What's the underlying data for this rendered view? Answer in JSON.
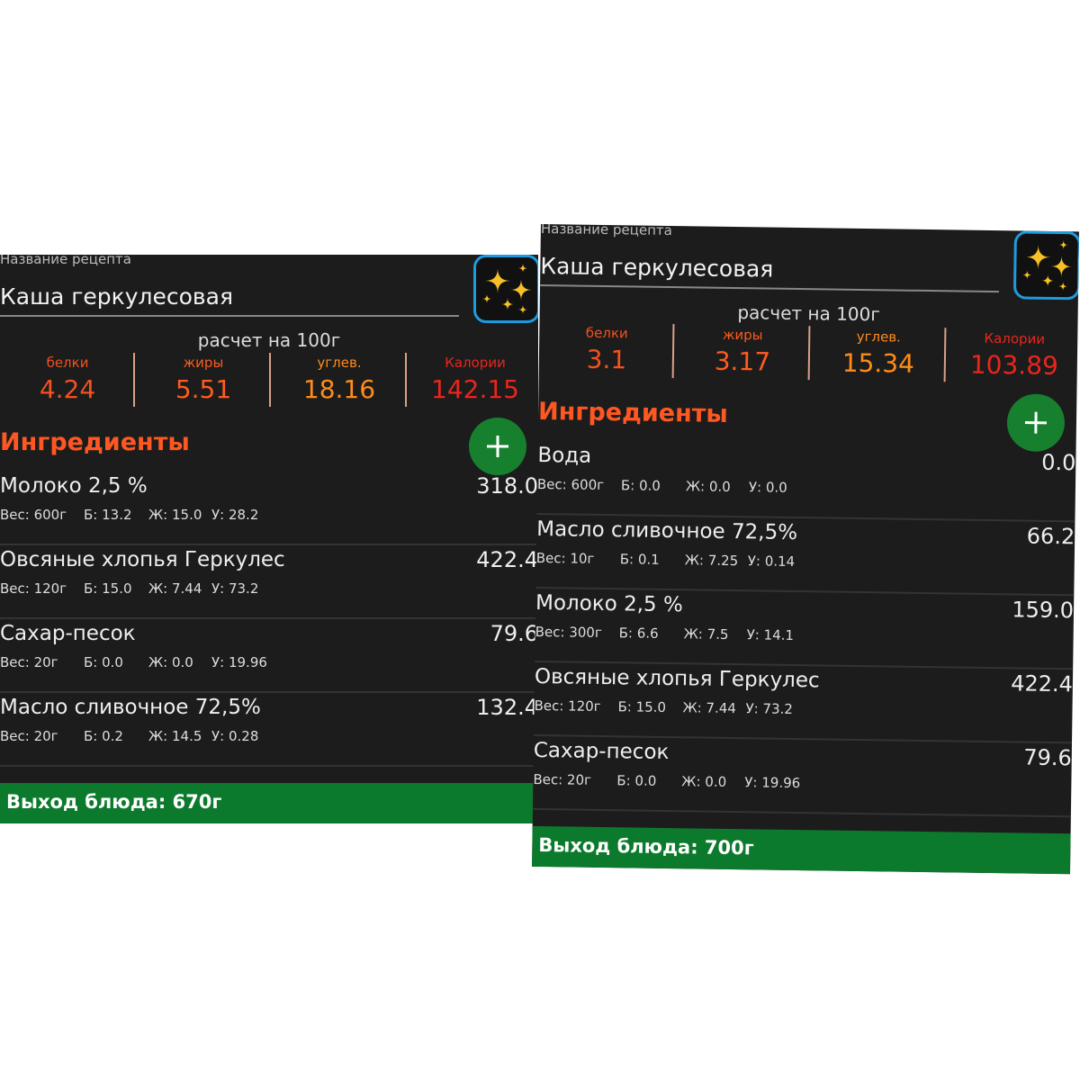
{
  "panels": [
    {
      "field_label": "Название рецепта",
      "recipe_name": "Каша геркулесовая",
      "per_label": "расчет на 100г",
      "nutrients": [
        {
          "label": "белки",
          "value": "4.24"
        },
        {
          "label": "жиры",
          "value": "5.51"
        },
        {
          "label": "углев.",
          "value": "18.16"
        },
        {
          "label": "Калории",
          "value": "142.15"
        }
      ],
      "ingredients_title": "Ингредиенты",
      "ingredients": [
        {
          "name": "Молоко 2,5 %",
          "kcal": "318.0",
          "weight": "Вес: 600г",
          "protein": "Б: 13.2",
          "fat": "Ж: 15.0",
          "carbs": "У: 28.2"
        },
        {
          "name": "Овсяные хлопья Геркулес",
          "kcal": "422.4",
          "weight": "Вес: 120г",
          "protein": "Б: 15.0",
          "fat": "Ж: 7.44",
          "carbs": "У: 73.2"
        },
        {
          "name": "Сахар-песок",
          "kcal": "79.6",
          "weight": "Вес: 20г",
          "protein": "Б: 0.0",
          "fat": "Ж: 0.0",
          "carbs": "У: 19.96"
        },
        {
          "name": "Масло сливочное 72,5%",
          "kcal": "132.4",
          "weight": "Вес: 20г",
          "protein": "Б: 0.2",
          "fat": "Ж: 14.5",
          "carbs": "У: 0.28"
        }
      ],
      "yield": "Выход блюда: 670г"
    },
    {
      "field_label": "Название рецепта",
      "recipe_name": "Каша геркулесовая",
      "per_label": "расчет на 100г",
      "nutrients": [
        {
          "label": "белки",
          "value": "3.1"
        },
        {
          "label": "жиры",
          "value": "3.17"
        },
        {
          "label": "углев.",
          "value": "15.34"
        },
        {
          "label": "Калории",
          "value": "103.89"
        }
      ],
      "ingredients_title": "Ингредиенты",
      "ingredients": [
        {
          "name": "Вода",
          "kcal": "0.0",
          "weight": "Вес: 600г",
          "protein": "Б: 0.0",
          "fat": "Ж: 0.0",
          "carbs": "У: 0.0"
        },
        {
          "name": "Масло сливочное 72,5%",
          "kcal": "66.2",
          "weight": "Вес: 10г",
          "protein": "Б: 0.1",
          "fat": "Ж: 7.25",
          "carbs": "У: 0.14"
        },
        {
          "name": "Молоко 2,5 %",
          "kcal": "159.0",
          "weight": "Вес: 300г",
          "protein": "Б: 6.6",
          "fat": "Ж: 7.5",
          "carbs": "У: 14.1"
        },
        {
          "name": "Овсяные хлопья Геркулес",
          "kcal": "422.4",
          "weight": "Вес: 120г",
          "protein": "Б: 15.0",
          "fat": "Ж: 7.44",
          "carbs": "У: 73.2"
        },
        {
          "name": "Сахар-песок",
          "kcal": "79.6",
          "weight": "Вес: 20г",
          "protein": "Б: 0.0",
          "fat": "Ж: 0.0",
          "carbs": "У: 19.96"
        }
      ],
      "yield": "Выход блюда: 700г"
    }
  ]
}
